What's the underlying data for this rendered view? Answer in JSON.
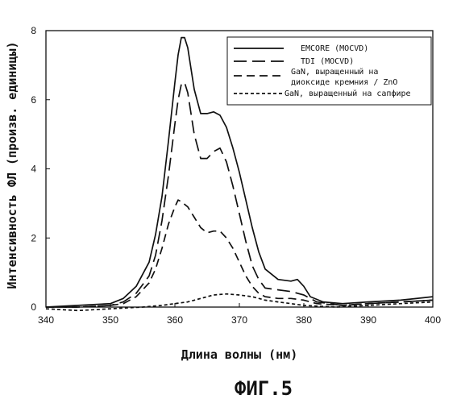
{
  "chart_data": {
    "type": "line",
    "title": "",
    "xlabel": "Длина волны (нм)",
    "ylabel": "Интенсивность ФЛ (произв. единицы)",
    "xlim": [
      340,
      400
    ],
    "ylim": [
      0,
      8
    ],
    "xticks": [
      340,
      350,
      360,
      370,
      380,
      390,
      400
    ],
    "yticks": [
      0,
      2,
      4,
      6,
      8
    ],
    "grid": false,
    "legend_position": "top-right",
    "series": [
      {
        "name": "EMCORE (MOCVD)",
        "style": "solid",
        "x": [
          340,
          345,
          350,
          352,
          354,
          356,
          357,
          358,
          359,
          360,
          360.5,
          361,
          361.5,
          362,
          362.5,
          363,
          364,
          365,
          366,
          367,
          368,
          369,
          370,
          371,
          372,
          373,
          374,
          376,
          378,
          379,
          380,
          381,
          383,
          386,
          390,
          395,
          400
        ],
        "y": [
          0.0,
          0.05,
          0.1,
          0.25,
          0.6,
          1.3,
          2.1,
          3.2,
          4.8,
          6.5,
          7.3,
          7.8,
          7.8,
          7.5,
          6.9,
          6.3,
          5.6,
          5.6,
          5.65,
          5.55,
          5.2,
          4.6,
          3.9,
          3.1,
          2.3,
          1.6,
          1.1,
          0.8,
          0.75,
          0.8,
          0.6,
          0.3,
          0.15,
          0.1,
          0.15,
          0.2,
          0.3
        ]
      },
      {
        "name": "TDI (MOCVD)",
        "style": "long-dash",
        "x": [
          340,
          345,
          350,
          352,
          354,
          356,
          357,
          358,
          359,
          360,
          360.5,
          361,
          361.5,
          362,
          362.5,
          363,
          364,
          365,
          366,
          367,
          368,
          369,
          370,
          371,
          372,
          373,
          374,
          376,
          378,
          380,
          382,
          386,
          390,
          395,
          400
        ],
        "y": [
          0.0,
          0.0,
          0.05,
          0.15,
          0.4,
          0.9,
          1.5,
          2.5,
          3.8,
          5.3,
          6.0,
          6.45,
          6.5,
          6.2,
          5.6,
          5.0,
          4.3,
          4.3,
          4.5,
          4.6,
          4.2,
          3.5,
          2.7,
          1.9,
          1.2,
          0.8,
          0.55,
          0.5,
          0.45,
          0.35,
          0.15,
          0.05,
          0.1,
          0.15,
          0.2
        ]
      },
      {
        "name": "GaN, выращенный на диоксиде кремния / ZnO",
        "style": "medium-dash",
        "x": [
          340,
          345,
          350,
          352,
          354,
          356,
          357,
          358,
          359,
          360,
          360.5,
          361,
          362,
          363,
          364,
          365,
          366,
          367,
          368,
          369,
          370,
          371,
          372,
          373,
          374,
          376,
          378,
          380,
          382,
          386,
          390,
          395,
          400
        ],
        "y": [
          0.0,
          0.0,
          0.05,
          0.1,
          0.3,
          0.7,
          1.1,
          1.7,
          2.4,
          2.9,
          3.1,
          3.05,
          2.9,
          2.6,
          2.3,
          2.15,
          2.2,
          2.2,
          2.0,
          1.7,
          1.3,
          0.9,
          0.6,
          0.4,
          0.3,
          0.25,
          0.25,
          0.2,
          0.1,
          0.05,
          0.1,
          0.15,
          0.2
        ]
      },
      {
        "name": "GaN, выращенный на сапфире",
        "style": "short-dash",
        "x": [
          340,
          345,
          350,
          355,
          358,
          360,
          362,
          364,
          366,
          368,
          370,
          372,
          374,
          376,
          378,
          380,
          385,
          390,
          395,
          400
        ],
        "y": [
          -0.05,
          -0.1,
          -0.05,
          0.0,
          0.05,
          0.1,
          0.15,
          0.25,
          0.35,
          0.38,
          0.35,
          0.3,
          0.2,
          0.15,
          0.1,
          0.05,
          0.0,
          0.05,
          0.1,
          0.15
        ]
      }
    ]
  },
  "caption": "ФИГ.5",
  "legend": {
    "entries": [
      {
        "lines": [
          "EMCORE (MOCVD)"
        ]
      },
      {
        "lines": [
          "TDI (MOCVD)"
        ]
      },
      {
        "lines": [
          "GaN, выращенный на",
          "диоксиде кремния / ZnO"
        ]
      },
      {
        "lines": [
          "GaN, выращенный на сапфире"
        ]
      }
    ]
  }
}
